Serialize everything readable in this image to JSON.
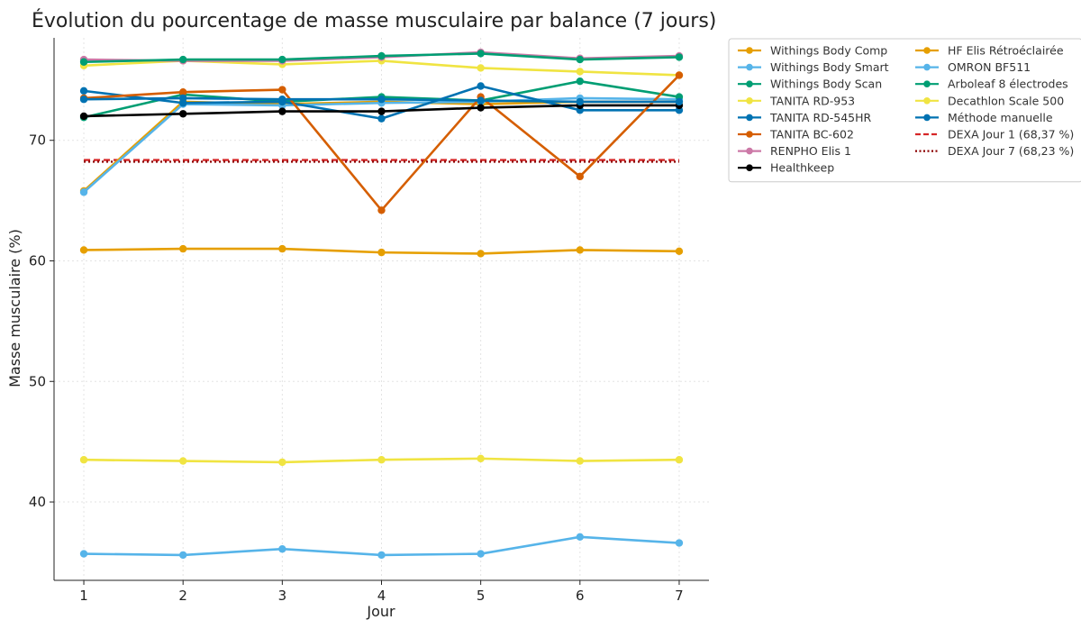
{
  "chart_data": {
    "type": "line",
    "title": "Évolution du pourcentage de masse musculaire par balance (7 jours)",
    "xlabel": "Jour",
    "ylabel": "Masse musculaire (%)",
    "x": [
      1,
      2,
      3,
      4,
      5,
      6,
      7
    ],
    "xlim": [
      0.7,
      7.3
    ],
    "ylim": [
      33.5,
      78.5
    ],
    "yticks": [
      40,
      50,
      60,
      70
    ],
    "grid": true,
    "legend_position": "outside-right",
    "series": [
      {
        "name": "Withings Body Comp",
        "color": "#E69F00",
        "style": "solid",
        "marker": true,
        "values": [
          65.8,
          73.2,
          73.0,
          73.2,
          73.0,
          73.2,
          73.2
        ]
      },
      {
        "name": "Withings Body Smart",
        "color": "#56B4E9",
        "style": "solid",
        "marker": true,
        "values": [
          65.7,
          73.0,
          72.9,
          73.1,
          73.2,
          73.5,
          73.4
        ]
      },
      {
        "name": "Withings Body Scan",
        "color": "#009E73",
        "style": "solid",
        "marker": true,
        "values": [
          71.9,
          73.8,
          73.2,
          73.6,
          73.3,
          74.9,
          73.6
        ]
      },
      {
        "name": "TANITA RD-953",
        "color": "#F0E442",
        "style": "solid",
        "marker": true,
        "values": [
          76.2,
          76.6,
          76.3,
          76.6,
          76.0,
          75.7,
          75.4
        ]
      },
      {
        "name": "TANITA RD-545HR",
        "color": "#0072B2",
        "style": "solid",
        "marker": true,
        "values": [
          74.1,
          73.1,
          73.2,
          71.8,
          74.5,
          72.5,
          72.5
        ]
      },
      {
        "name": "TANITA BC-602",
        "color": "#D55E00",
        "style": "solid",
        "marker": true,
        "values": [
          73.5,
          74.0,
          74.2,
          64.2,
          73.6,
          67.0,
          75.4
        ]
      },
      {
        "name": "RENPHO Elis 1",
        "color": "#CC79A7",
        "style": "solid",
        "marker": true,
        "values": [
          76.7,
          76.6,
          76.6,
          76.9,
          77.3,
          76.8,
          77.0
        ]
      },
      {
        "name": "Healthkeep",
        "color": "#000000",
        "style": "solid",
        "marker": true,
        "values": [
          72.0,
          72.2,
          72.4,
          72.4,
          72.7,
          72.9,
          72.9
        ]
      },
      {
        "name": "HF Elis Rétroéclairée",
        "color": "#E69F00",
        "style": "solid",
        "marker": true,
        "values": [
          60.9,
          61.0,
          61.0,
          60.7,
          60.6,
          60.9,
          60.8
        ]
      },
      {
        "name": "OMRON BF511",
        "color": "#56B4E9",
        "style": "solid",
        "marker": true,
        "values": [
          35.7,
          35.6,
          36.1,
          35.6,
          35.7,
          37.1,
          36.6
        ]
      },
      {
        "name": "Arboleaf 8 électrodes",
        "color": "#009E73",
        "style": "solid",
        "marker": true,
        "values": [
          76.5,
          76.7,
          76.7,
          77.0,
          77.2,
          76.7,
          76.9
        ]
      },
      {
        "name": "Decathlon Scale 500",
        "color": "#F0E442",
        "style": "solid",
        "marker": true,
        "values": [
          43.5,
          43.4,
          43.3,
          43.5,
          43.6,
          43.4,
          43.5
        ]
      },
      {
        "name": "Méthode manuelle",
        "color": "#0072B2",
        "style": "solid",
        "marker": true,
        "values": [
          73.4,
          73.5,
          73.4,
          73.4,
          73.3,
          73.2,
          73.2
        ]
      },
      {
        "name": "DEXA Jour 1 (68,37 %)",
        "color": "#d62728",
        "style": "dashed",
        "marker": false,
        "values": [
          68.37,
          68.37,
          68.37,
          68.37,
          68.37,
          68.37,
          68.37
        ]
      },
      {
        "name": "DEXA Jour 7 (68,23 %)",
        "color": "#8b0000",
        "style": "dotted",
        "marker": false,
        "values": [
          68.23,
          68.23,
          68.23,
          68.23,
          68.23,
          68.23,
          68.23
        ]
      }
    ]
  }
}
